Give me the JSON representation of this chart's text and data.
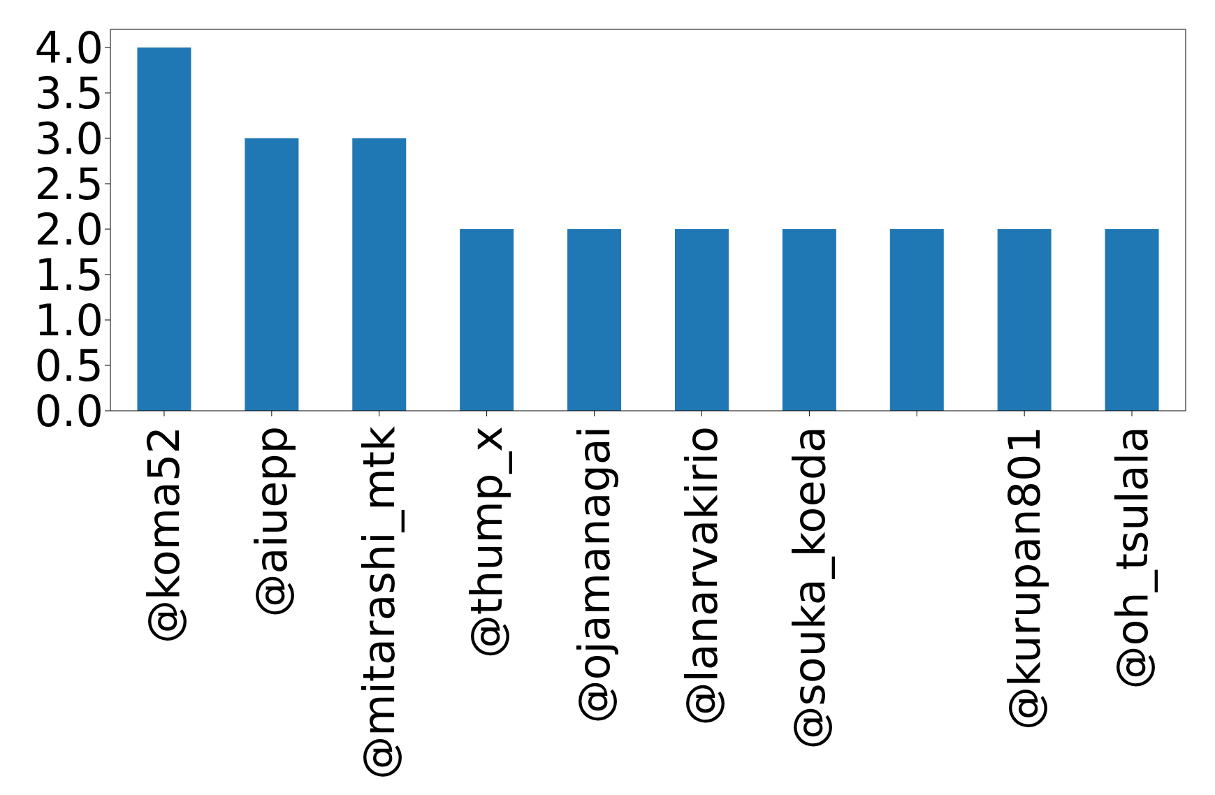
{
  "chart_data": {
    "type": "bar",
    "categories": [
      "@koma52",
      "@aiuepp",
      "@mitarashi_mtk",
      "@thump_x",
      "@ojamanagai",
      "@lanarvakirio",
      "@souka_koeda",
      null,
      "@kurupan801",
      "@oh_tsulala"
    ],
    "values": [
      4,
      3,
      3,
      2,
      2,
      2,
      2,
      2,
      2,
      2
    ],
    "color": "#1f77b4",
    "ylim": [
      0,
      4.2
    ],
    "yticks": [
      {
        "value": 0,
        "label": "0.0"
      },
      {
        "value": 0.5,
        "label": "0.5"
      },
      {
        "value": 1,
        "label": "1.0"
      },
      {
        "value": 1.5,
        "label": "1.5"
      },
      {
        "value": 2,
        "label": "2.0"
      },
      {
        "value": 2.5,
        "label": "2.5"
      },
      {
        "value": 3,
        "label": "3.0"
      },
      {
        "value": 3.5,
        "label": "3.5"
      },
      {
        "value": 4,
        "label": "4.0"
      }
    ],
    "grid": false
  }
}
